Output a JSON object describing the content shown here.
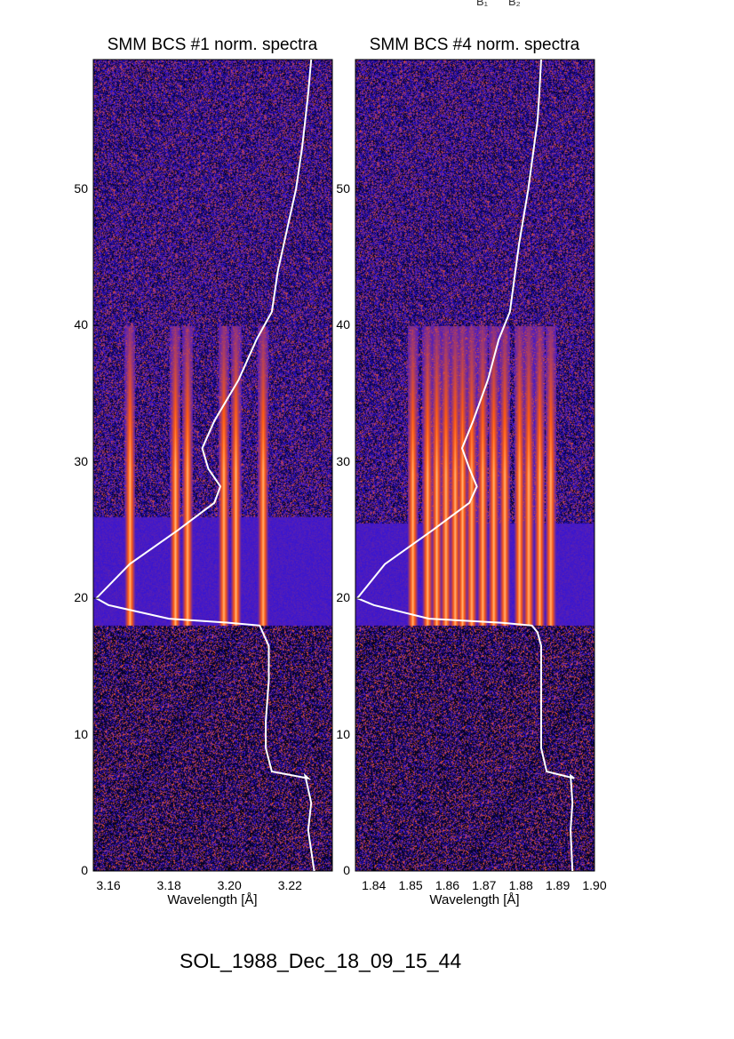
{
  "caption": "SOL_1988_Dec_18_09_15_44",
  "corner_labels": [
    "B₁",
    "B₂"
  ],
  "colors": {
    "background": "#ffffff",
    "curve": "#ffffff",
    "low": "#000000",
    "mid": "#2a10e0",
    "high": "#ff5a10",
    "peak": "#ffd7a0"
  },
  "chart_data": [
    {
      "type": "heatmap",
      "title": "SMM BCS #1 norm. spectra",
      "xlabel": "Wavelength [Å]",
      "ylabel": "",
      "x_ticks": [
        "3.16",
        "3.18",
        "3.20",
        "3.22"
      ],
      "x_tick_values": [
        3.16,
        3.18,
        3.2,
        3.22
      ],
      "xlim": [
        3.155,
        3.234
      ],
      "y_ticks": [
        "0",
        "10",
        "20",
        "30",
        "40",
        "50"
      ],
      "y_tick_values": [
        0,
        10,
        20,
        30,
        40,
        50
      ],
      "ylim": [
        0,
        59.5
      ],
      "emission_lines_x": [
        3.167,
        3.182,
        3.186,
        3.198,
        3.202,
        3.211
      ],
      "bright_band_y": [
        18,
        26
      ],
      "light_curve": {
        "x": [
          3.228,
          3.226,
          3.227,
          3.225,
          3.226,
          3.214,
          3.212,
          3.212,
          3.213,
          3.213,
          3.211,
          3.21,
          3.2,
          3.18,
          3.16,
          3.156,
          3.167,
          3.183,
          3.195,
          3.197,
          3.193,
          3.191,
          3.195,
          3.203,
          3.209,
          3.214,
          3.216,
          3.218,
          3.222,
          3.224,
          3.225,
          3.226,
          3.227
        ],
        "y": [
          0,
          3,
          5,
          7,
          6.8,
          7.3,
          9,
          11,
          14,
          16.5,
          17.5,
          18,
          18.2,
          18.5,
          19.5,
          20,
          22.5,
          25,
          27,
          28.2,
          29.5,
          31,
          33,
          36,
          39,
          41,
          44,
          46,
          50,
          53,
          55,
          57,
          59.5
        ]
      }
    },
    {
      "type": "heatmap",
      "title": "SMM BCS #4 norm. spectra",
      "xlabel": "Wavelength [Å]",
      "ylabel": "",
      "x_ticks": [
        "1.84",
        "1.85",
        "1.86",
        "1.87",
        "1.88",
        "1.89",
        "1.90"
      ],
      "x_tick_values": [
        1.84,
        1.85,
        1.86,
        1.87,
        1.88,
        1.89,
        1.9
      ],
      "xlim": [
        1.835,
        1.9
      ],
      "y_ticks": [
        "0",
        "10",
        "20",
        "30",
        "40",
        "50"
      ],
      "y_tick_values": [
        0,
        10,
        20,
        30,
        40,
        50
      ],
      "ylim": [
        0,
        59.5
      ],
      "emission_lines_x": [
        1.8505,
        1.8545,
        1.857,
        1.8595,
        1.862,
        1.864,
        1.8665,
        1.8695,
        1.8725,
        1.8755,
        1.8795,
        1.882,
        1.885,
        1.888
      ],
      "bright_band_y": [
        18,
        25.5
      ],
      "light_curve": {
        "x": [
          1.894,
          1.8935,
          1.894,
          1.8935,
          1.8945,
          1.887,
          1.8855,
          1.8855,
          1.8855,
          1.8855,
          1.8845,
          1.883,
          1.875,
          1.855,
          1.84,
          1.8355,
          1.843,
          1.856,
          1.866,
          1.868,
          1.866,
          1.864,
          1.867,
          1.871,
          1.874,
          1.877,
          1.8785,
          1.8795,
          1.882,
          1.8835,
          1.8845,
          1.885,
          1.8855
        ],
        "y": [
          0,
          3,
          5,
          7,
          6.8,
          7.3,
          9,
          11,
          14,
          16.5,
          17.5,
          18,
          18.2,
          18.5,
          19.5,
          20,
          22.5,
          25,
          27,
          28.2,
          29.5,
          31,
          33,
          36,
          39,
          41,
          44,
          46,
          50,
          53,
          55,
          57,
          59.5
        ]
      }
    }
  ]
}
